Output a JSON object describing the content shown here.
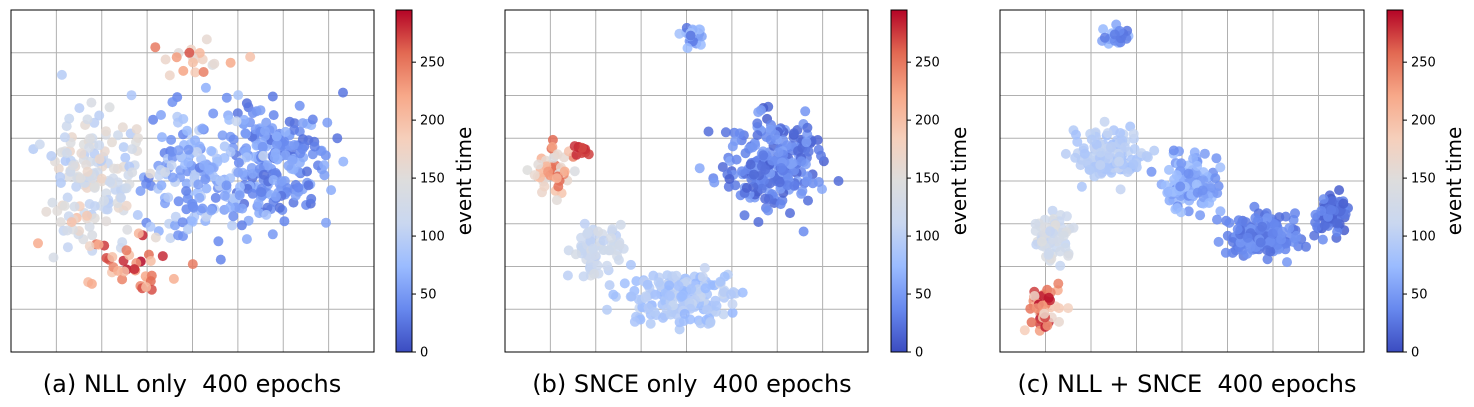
{
  "colormap": {
    "name": "coolwarm",
    "min": 0,
    "max": 295,
    "stops": [
      "#3b4cc0",
      "#6788ee",
      "#9abbff",
      "#c9d7f0",
      "#dddddd",
      "#f6cfbb",
      "#f7a889",
      "#e26952",
      "#b40426"
    ]
  },
  "chart_data": [
    {
      "type": "scatter",
      "title": "(a) NLL only  400 epochs",
      "xlabel": "",
      "ylabel": "",
      "xticks_visible": false,
      "yticks_visible": false,
      "grid": true,
      "colorbar": {
        "label": "event time",
        "ticks": [
          0,
          50,
          100,
          150,
          200,
          250
        ],
        "range": [
          0,
          295
        ]
      },
      "clusters": [
        {
          "center": [
            0.73,
            0.55
          ],
          "spread": [
            0.12,
            0.14
          ],
          "count": 200,
          "event_time_range": [
            20,
            70
          ]
        },
        {
          "center": [
            0.52,
            0.52
          ],
          "spread": [
            0.16,
            0.16
          ],
          "count": 170,
          "event_time_range": [
            30,
            110
          ]
        },
        {
          "center": [
            0.24,
            0.52
          ],
          "spread": [
            0.13,
            0.18
          ],
          "count": 140,
          "event_time_range": [
            90,
            170
          ]
        },
        {
          "center": [
            0.32,
            0.25
          ],
          "spread": [
            0.12,
            0.08
          ],
          "count": 35,
          "event_time_range": [
            190,
            295
          ]
        },
        {
          "center": [
            0.15,
            0.36
          ],
          "spread": [
            0.08,
            0.08
          ],
          "count": 20,
          "event_time_range": [
            110,
            220
          ]
        },
        {
          "center": [
            0.5,
            0.86
          ],
          "spread": [
            0.12,
            0.05
          ],
          "count": 20,
          "event_time_range": [
            140,
            270
          ]
        }
      ]
    },
    {
      "type": "scatter",
      "title": "(b) SNCE only  400 epochs",
      "xlabel": "",
      "ylabel": "",
      "xticks_visible": false,
      "yticks_visible": false,
      "grid": true,
      "colorbar": {
        "label": "event time",
        "ticks": [
          0,
          50,
          100,
          150,
          200,
          250
        ],
        "range": [
          0,
          295
        ]
      },
      "clusters": [
        {
          "center": [
            0.73,
            0.55
          ],
          "spread": [
            0.12,
            0.13
          ],
          "count": 230,
          "event_time_range": [
            10,
            60
          ]
        },
        {
          "center": [
            0.48,
            0.16
          ],
          "spread": [
            0.13,
            0.07
          ],
          "count": 170,
          "event_time_range": [
            70,
            110
          ]
        },
        {
          "center": [
            0.26,
            0.3
          ],
          "spread": [
            0.06,
            0.07
          ],
          "count": 70,
          "event_time_range": [
            100,
            135
          ]
        },
        {
          "center": [
            0.13,
            0.52
          ],
          "spread": [
            0.05,
            0.06
          ],
          "count": 50,
          "event_time_range": [
            140,
            260
          ]
        },
        {
          "center": [
            0.21,
            0.59
          ],
          "spread": [
            0.03,
            0.02
          ],
          "count": 10,
          "event_time_range": [
            260,
            295
          ]
        },
        {
          "center": [
            0.52,
            0.92
          ],
          "spread": [
            0.03,
            0.025
          ],
          "count": 30,
          "event_time_range": [
            20,
            90
          ]
        }
      ]
    },
    {
      "type": "scatter",
      "title": "(c) NLL + SNCE  400 epochs",
      "xlabel": "",
      "ylabel": "",
      "xticks_visible": false,
      "yticks_visible": false,
      "grid": true,
      "colorbar": {
        "label": "event time",
        "ticks": [
          0,
          50,
          100,
          150,
          200,
          250
        ],
        "range": [
          0,
          295
        ]
      },
      "clusters": [
        {
          "center": [
            0.3,
            0.58
          ],
          "spread": [
            0.1,
            0.07
          ],
          "count": 130,
          "event_time_range": [
            80,
            110
          ]
        },
        {
          "center": [
            0.52,
            0.5
          ],
          "spread": [
            0.08,
            0.07
          ],
          "count": 110,
          "event_time_range": [
            40,
            80
          ]
        },
        {
          "center": [
            0.72,
            0.34
          ],
          "spread": [
            0.09,
            0.06
          ],
          "count": 150,
          "event_time_range": [
            20,
            50
          ]
        },
        {
          "center": [
            0.91,
            0.4
          ],
          "spread": [
            0.04,
            0.05
          ],
          "count": 70,
          "event_time_range": [
            10,
            40
          ]
        },
        {
          "center": [
            0.14,
            0.33
          ],
          "spread": [
            0.05,
            0.07
          ],
          "count": 60,
          "event_time_range": [
            100,
            150
          ]
        },
        {
          "center": [
            0.12,
            0.13
          ],
          "spread": [
            0.04,
            0.06
          ],
          "count": 60,
          "event_time_range": [
            160,
            295
          ]
        },
        {
          "center": [
            0.32,
            0.92
          ],
          "spread": [
            0.03,
            0.025
          ],
          "count": 25,
          "event_time_range": [
            20,
            90
          ]
        }
      ]
    }
  ]
}
